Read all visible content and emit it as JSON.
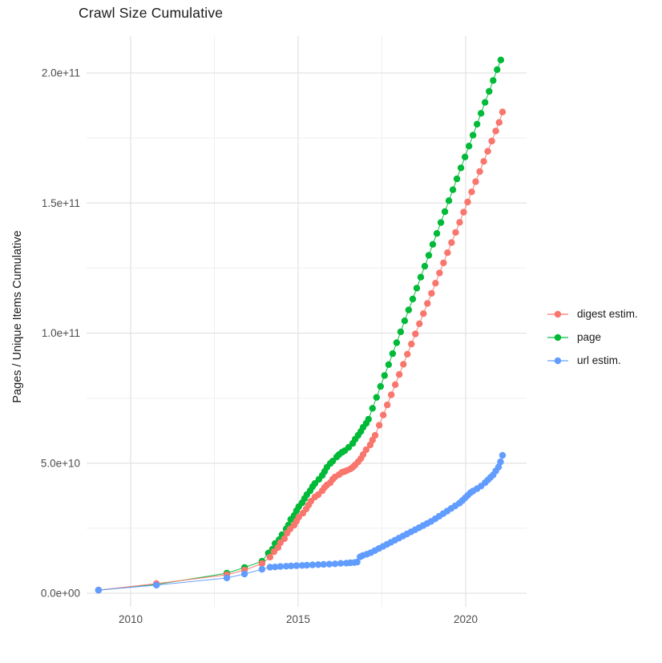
{
  "title": "Crawl Size Cumulative",
  "y_axis_title": "Pages / Unique Items Cumulative",
  "chart_data": {
    "type": "scatter",
    "title": "Crawl Size Cumulative",
    "xlabel": "",
    "ylabel": "Pages / Unique Items Cumulative",
    "x_ticks": [
      2010,
      2015,
      2020
    ],
    "x_tick_labels": [
      "2010",
      "2015",
      "2020"
    ],
    "y_tick_values": [
      0,
      50000000000.0,
      100000000000.0,
      150000000000.0,
      200000000000.0
    ],
    "y_tick_labels": [
      "0.0e+00",
      "5.0e+10",
      "1.0e+11",
      "1.5e+11",
      "2.0e+11"
    ],
    "xlim": [
      2008.68,
      2021.8
    ],
    "ylim": [
      -5000000000.0,
      214000000000.0
    ],
    "grid": true,
    "legend_position": "right",
    "colors": {
      "digest": "#F8766D",
      "page": "#00BA38",
      "url": "#619CFF"
    },
    "series": [
      {
        "name": "digest estim.",
        "color": "#F8766D",
        "points": [
          [
            2009.04,
            1200000000.0
          ],
          [
            2010.77,
            3700000000.0
          ],
          [
            2012.87,
            7100000000.0
          ],
          [
            2013.4,
            8900000000.0
          ],
          [
            2013.92,
            11400000000.0
          ],
          [
            2014.16,
            13900000000.0
          ],
          [
            2014.28,
            16000000000.0
          ],
          [
            2014.4,
            17600000000.0
          ],
          [
            2014.47,
            19400000000.0
          ],
          [
            2014.59,
            21000000000.0
          ],
          [
            2014.67,
            23100000000.0
          ],
          [
            2014.76,
            24700000000.0
          ],
          [
            2014.88,
            26200000000.0
          ],
          [
            2014.95,
            27700000000.0
          ],
          [
            2015.02,
            29300000000.0
          ],
          [
            2015.14,
            30800000000.0
          ],
          [
            2015.24,
            32400000000.0
          ],
          [
            2015.31,
            33900000000.0
          ],
          [
            2015.38,
            35400000000.0
          ],
          [
            2015.5,
            37000000000.0
          ],
          [
            2015.6,
            37900000000.0
          ],
          [
            2015.72,
            39400000000.0
          ],
          [
            2015.79,
            40700000000.0
          ],
          [
            2015.86,
            41600000000.0
          ],
          [
            2015.96,
            42500000000.0
          ],
          [
            2016.03,
            43800000000.0
          ],
          [
            2016.1,
            44700000000.0
          ],
          [
            2016.22,
            45600000000.0
          ],
          [
            2016.31,
            46500000000.0
          ],
          [
            2016.39,
            46800000000.0
          ],
          [
            2016.46,
            47200000000.0
          ],
          [
            2016.56,
            47800000000.0
          ],
          [
            2016.63,
            48400000000.0
          ],
          [
            2016.7,
            49300000000.0
          ],
          [
            2016.79,
            50500000000.0
          ],
          [
            2016.87,
            51800000000.0
          ],
          [
            2016.94,
            53300000000.0
          ],
          [
            2017.03,
            55200000000.0
          ],
          [
            2017.15,
            57000000000.0
          ],
          [
            2017.22,
            58900000000.0
          ],
          [
            2017.3,
            60700000000.0
          ],
          [
            2017.42,
            64600000000.0
          ],
          [
            2017.54,
            68500000000.0
          ],
          [
            2017.66,
            72400000000.0
          ],
          [
            2017.78,
            76300000000.0
          ],
          [
            2017.9,
            80200000000.0
          ],
          [
            2018.02,
            84100000000.0
          ],
          [
            2018.14,
            88000000000.0
          ],
          [
            2018.26,
            91900000000.0
          ],
          [
            2018.38,
            95800000000.0
          ],
          [
            2018.5,
            99700000000.0
          ],
          [
            2018.62,
            103600000000.0
          ],
          [
            2018.74,
            107500000000.0
          ],
          [
            2018.86,
            111400000000.0
          ],
          [
            2018.98,
            115300000000.0
          ],
          [
            2019.1,
            119200000000.0
          ],
          [
            2019.22,
            123100000000.0
          ],
          [
            2019.34,
            127000000000.0
          ],
          [
            2019.46,
            130900000000.0
          ],
          [
            2019.58,
            134800000000.0
          ],
          [
            2019.7,
            138700000000.0
          ],
          [
            2019.82,
            142600000000.0
          ],
          [
            2019.94,
            146500000000.0
          ],
          [
            2020.06,
            150400000000.0
          ],
          [
            2020.18,
            154300000000.0
          ],
          [
            2020.3,
            158200000000.0
          ],
          [
            2020.42,
            162100000000.0
          ],
          [
            2020.54,
            166000000000.0
          ],
          [
            2020.66,
            169900000000.0
          ],
          [
            2020.78,
            173800000000.0
          ],
          [
            2020.9,
            177700000000.0
          ],
          [
            2021.0,
            181000000000.0
          ],
          [
            2021.1,
            185000000000.0
          ]
        ]
      },
      {
        "name": "page",
        "color": "#00BA38",
        "points": [
          [
            2009.04,
            1200000000.0
          ],
          [
            2010.77,
            3400000000.0
          ],
          [
            2012.87,
            7700000000.0
          ],
          [
            2013.4,
            9900000000.0
          ],
          [
            2013.92,
            12300000000.0
          ],
          [
            2014.11,
            15400000000.0
          ],
          [
            2014.23,
            16900000000.0
          ],
          [
            2014.31,
            19100000000.0
          ],
          [
            2014.43,
            20600000000.0
          ],
          [
            2014.52,
            22500000000.0
          ],
          [
            2014.64,
            24700000000.0
          ],
          [
            2014.71,
            26200000000.0
          ],
          [
            2014.78,
            28400000000.0
          ],
          [
            2014.88,
            29900000000.0
          ],
          [
            2014.95,
            31700000000.0
          ],
          [
            2015.02,
            33300000000.0
          ],
          [
            2015.12,
            34800000000.0
          ],
          [
            2015.19,
            36400000000.0
          ],
          [
            2015.26,
            37900000000.0
          ],
          [
            2015.36,
            39400000000.0
          ],
          [
            2015.43,
            41000000000.0
          ],
          [
            2015.5,
            42200000000.0
          ],
          [
            2015.62,
            43800000000.0
          ],
          [
            2015.72,
            45300000000.0
          ],
          [
            2015.79,
            46800000000.0
          ],
          [
            2015.86,
            48400000000.0
          ],
          [
            2015.96,
            49900000000.0
          ],
          [
            2016.03,
            50800000000.0
          ],
          [
            2016.15,
            52400000000.0
          ],
          [
            2016.22,
            53300000000.0
          ],
          [
            2016.31,
            54200000000.0
          ],
          [
            2016.39,
            54800000000.0
          ],
          [
            2016.51,
            56100000000.0
          ],
          [
            2016.63,
            57600000000.0
          ],
          [
            2016.7,
            59200000000.0
          ],
          [
            2016.79,
            60700000000.0
          ],
          [
            2016.87,
            62200000000.0
          ],
          [
            2016.94,
            63800000000.0
          ],
          [
            2017.03,
            65300000000.0
          ],
          [
            2017.1,
            66900000000.0
          ],
          [
            2017.22,
            71100000000.0
          ],
          [
            2017.34,
            75300000000.0
          ],
          [
            2017.46,
            79500000000.0
          ],
          [
            2017.58,
            83700000000.0
          ],
          [
            2017.7,
            87900000000.0
          ],
          [
            2017.82,
            92100000000.0
          ],
          [
            2017.94,
            96300000000.0
          ],
          [
            2018.06,
            100500000000.0
          ],
          [
            2018.18,
            104700000000.0
          ],
          [
            2018.3,
            108900000000.0
          ],
          [
            2018.42,
            113100000000.0
          ],
          [
            2018.54,
            117300000000.0
          ],
          [
            2018.66,
            121500000000.0
          ],
          [
            2018.78,
            125700000000.0
          ],
          [
            2018.9,
            129900000000.0
          ],
          [
            2019.02,
            134100000000.0
          ],
          [
            2019.14,
            138300000000.0
          ],
          [
            2019.26,
            142500000000.0
          ],
          [
            2019.38,
            146700000000.0
          ],
          [
            2019.5,
            150900000000.0
          ],
          [
            2019.62,
            155100000000.0
          ],
          [
            2019.74,
            159300000000.0
          ],
          [
            2019.86,
            163500000000.0
          ],
          [
            2019.98,
            167700000000.0
          ],
          [
            2020.1,
            171900000000.0
          ],
          [
            2020.22,
            176100000000.0
          ],
          [
            2020.34,
            180300000000.0
          ],
          [
            2020.46,
            184500000000.0
          ],
          [
            2020.58,
            188700000000.0
          ],
          [
            2020.7,
            192900000000.0
          ],
          [
            2020.82,
            197100000000.0
          ],
          [
            2020.94,
            201300000000.0
          ],
          [
            2021.05,
            205000000000.0
          ]
        ]
      },
      {
        "name": "url estim.",
        "color": "#619CFF",
        "points": [
          [
            2009.04,
            1200000000.0
          ],
          [
            2010.77,
            3100000000.0
          ],
          [
            2012.87,
            5900000000.0
          ],
          [
            2013.4,
            7400000000.0
          ],
          [
            2013.92,
            9200000000.0
          ],
          [
            2014.16,
            10000000000.0
          ],
          [
            2014.31,
            10100000000.0
          ],
          [
            2014.47,
            10300000000.0
          ],
          [
            2014.64,
            10400000000.0
          ],
          [
            2014.79,
            10500000000.0
          ],
          [
            2014.95,
            10600000000.0
          ],
          [
            2015.12,
            10700000000.0
          ],
          [
            2015.26,
            10800000000.0
          ],
          [
            2015.43,
            10900000000.0
          ],
          [
            2015.6,
            11000000000.0
          ],
          [
            2015.76,
            11100000000.0
          ],
          [
            2015.93,
            11200000000.0
          ],
          [
            2016.1,
            11300000000.0
          ],
          [
            2016.27,
            11500000000.0
          ],
          [
            2016.44,
            11600000000.0
          ],
          [
            2016.56,
            11700000000.0
          ],
          [
            2016.68,
            11800000000.0
          ],
          [
            2016.76,
            12000000000.0
          ],
          [
            2016.85,
            14000000000.0
          ],
          [
            2016.93,
            14500000000.0
          ],
          [
            2017.05,
            15000000000.0
          ],
          [
            2017.17,
            15600000000.0
          ],
          [
            2017.29,
            16400000000.0
          ],
          [
            2017.41,
            17200000000.0
          ],
          [
            2017.53,
            18000000000.0
          ],
          [
            2017.65,
            18800000000.0
          ],
          [
            2017.77,
            19600000000.0
          ],
          [
            2017.89,
            20400000000.0
          ],
          [
            2018.01,
            21200000000.0
          ],
          [
            2018.13,
            22000000000.0
          ],
          [
            2018.25,
            22800000000.0
          ],
          [
            2018.37,
            23600000000.0
          ],
          [
            2018.49,
            24400000000.0
          ],
          [
            2018.61,
            25200000000.0
          ],
          [
            2018.73,
            26000000000.0
          ],
          [
            2018.85,
            26800000000.0
          ],
          [
            2018.97,
            27600000000.0
          ],
          [
            2019.09,
            28600000000.0
          ],
          [
            2019.21,
            29600000000.0
          ],
          [
            2019.33,
            30600000000.0
          ],
          [
            2019.45,
            31600000000.0
          ],
          [
            2019.57,
            32600000000.0
          ],
          [
            2019.69,
            33600000000.0
          ],
          [
            2019.81,
            34600000000.0
          ],
          [
            2019.9,
            35600000000.0
          ],
          [
            2019.98,
            36600000000.0
          ],
          [
            2020.06,
            37600000000.0
          ],
          [
            2020.14,
            38600000000.0
          ],
          [
            2020.22,
            39300000000.0
          ],
          [
            2020.34,
            40200000000.0
          ],
          [
            2020.46,
            41200000000.0
          ],
          [
            2020.58,
            42500000000.0
          ],
          [
            2020.66,
            43500000000.0
          ],
          [
            2020.74,
            44500000000.0
          ],
          [
            2020.82,
            45500000000.0
          ],
          [
            2020.9,
            47000000000.0
          ],
          [
            2020.98,
            48500000000.0
          ],
          [
            2021.04,
            50500000000.0
          ],
          [
            2021.1,
            53000000000.0
          ]
        ]
      }
    ],
    "legend": [
      {
        "label": "digest estim.",
        "color": "#F8766D"
      },
      {
        "label": "page",
        "color": "#00BA38"
      },
      {
        "label": "url estim.",
        "color": "#619CFF"
      }
    ]
  }
}
